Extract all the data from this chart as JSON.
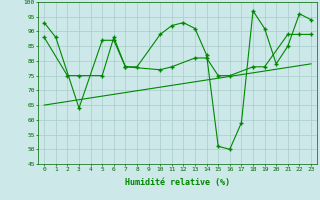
{
  "xlabel": "Humidité relative (%)",
  "background_color": "#cce8e8",
  "grid_color": "#aacccc",
  "line_color": "#008800",
  "xlim": [
    -0.5,
    23.5
  ],
  "ylim": [
    45,
    100
  ],
  "yticks": [
    45,
    50,
    55,
    60,
    65,
    70,
    75,
    80,
    85,
    90,
    95,
    100
  ],
  "xticks": [
    0,
    1,
    2,
    3,
    4,
    5,
    6,
    7,
    8,
    9,
    10,
    11,
    12,
    13,
    14,
    15,
    16,
    17,
    18,
    19,
    20,
    21,
    22,
    23
  ],
  "line1": {
    "x": [
      0,
      1,
      3,
      5,
      6,
      7,
      8,
      10,
      11,
      12,
      13,
      14,
      15,
      16,
      17,
      18,
      19,
      20,
      21,
      22,
      23
    ],
    "y": [
      93,
      88,
      64,
      87,
      87,
      78,
      78,
      89,
      92,
      93,
      91,
      82,
      51,
      50,
      59,
      97,
      91,
      79,
      85,
      96,
      94
    ]
  },
  "line2": {
    "x": [
      0,
      2,
      3,
      5,
      6,
      7,
      10,
      11,
      13,
      14,
      15,
      16,
      18,
      19,
      21,
      22,
      23
    ],
    "y": [
      88,
      75,
      75,
      75,
      88,
      78,
      77,
      78,
      81,
      81,
      75,
      75,
      78,
      78,
      89,
      89,
      89
    ]
  },
  "line3": {
    "x": [
      0,
      23
    ],
    "y": [
      65,
      79
    ]
  }
}
